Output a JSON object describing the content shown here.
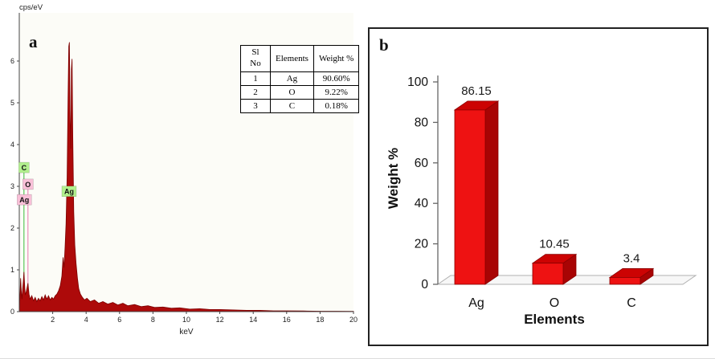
{
  "figure": {
    "panel_a_label": "a",
    "panel_b_label": "b"
  },
  "table": {
    "headers": [
      "Sl\nNo",
      "Elements",
      "Weight %"
    ],
    "rows": [
      [
        "1",
        "Ag",
        "90.60%"
      ],
      [
        "2",
        "O",
        "9.22%"
      ],
      [
        "3",
        "C",
        "0.18%"
      ]
    ]
  },
  "chart_data": [
    {
      "type": "area",
      "title": "EDS spectrum",
      "xlabel": "keV",
      "ylabel": "cps/eV",
      "xlim": [
        0,
        20
      ],
      "ylim": [
        0,
        7
      ],
      "x_ticks": [
        2,
        4,
        6,
        8,
        10,
        12,
        14,
        16,
        18,
        20
      ],
      "y_ticks": [
        0,
        1,
        2,
        3,
        4,
        5,
        6
      ],
      "color": "#ad0a0a",
      "stroke": "#7d0000",
      "bg": "#fcfcf7",
      "markers": [
        {
          "label": "C",
          "x": 0.28,
          "label_y": 3.45,
          "bg": "#b2f08e",
          "line": "#3dbb3d"
        },
        {
          "label": "O",
          "x": 0.52,
          "label_y": 3.05,
          "bg": "#f9c0d8",
          "line": "#e87ab0"
        },
        {
          "label": "Ag",
          "x": 0.3,
          "label_y": 2.68,
          "bg": "#f9c0d8",
          "line": null
        },
        {
          "label": "Ag",
          "x": 2.98,
          "label_y": 2.88,
          "bg": "#b2f08e",
          "line": "#3dbb3d"
        }
      ],
      "points": [
        [
          0.0,
          0.02
        ],
        [
          0.04,
          0.35
        ],
        [
          0.08,
          0.8
        ],
        [
          0.12,
          0.5
        ],
        [
          0.16,
          0.3
        ],
        [
          0.2,
          0.55
        ],
        [
          0.24,
          0.72
        ],
        [
          0.28,
          0.95
        ],
        [
          0.32,
          0.62
        ],
        [
          0.36,
          0.4
        ],
        [
          0.42,
          0.48
        ],
        [
          0.48,
          0.6
        ],
        [
          0.52,
          0.68
        ],
        [
          0.58,
          0.42
        ],
        [
          0.65,
          0.3
        ],
        [
          0.75,
          0.38
        ],
        [
          0.85,
          0.26
        ],
        [
          0.95,
          0.34
        ],
        [
          1.05,
          0.24
        ],
        [
          1.15,
          0.32
        ],
        [
          1.25,
          0.26
        ],
        [
          1.35,
          0.36
        ],
        [
          1.45,
          0.28
        ],
        [
          1.55,
          0.4
        ],
        [
          1.65,
          0.3
        ],
        [
          1.75,
          0.38
        ],
        [
          1.85,
          0.28
        ],
        [
          1.95,
          0.34
        ],
        [
          2.05,
          0.3
        ],
        [
          2.15,
          0.38
        ],
        [
          2.25,
          0.42
        ],
        [
          2.35,
          0.5
        ],
        [
          2.45,
          0.62
        ],
        [
          2.55,
          0.85
        ],
        [
          2.62,
          1.3
        ],
        [
          2.68,
          1.05
        ],
        [
          2.74,
          1.55
        ],
        [
          2.8,
          2.1
        ],
        [
          2.86,
          3.2
        ],
        [
          2.92,
          5.1
        ],
        [
          2.96,
          6.35
        ],
        [
          3.0,
          6.45
        ],
        [
          3.04,
          4.8
        ],
        [
          3.08,
          3.9
        ],
        [
          3.12,
          5.8
        ],
        [
          3.16,
          6.05
        ],
        [
          3.2,
          4.2
        ],
        [
          3.26,
          2.4
        ],
        [
          3.32,
          1.6
        ],
        [
          3.4,
          1.15
        ],
        [
          3.48,
          0.8
        ],
        [
          3.56,
          0.55
        ],
        [
          3.66,
          0.42
        ],
        [
          3.78,
          0.34
        ],
        [
          3.9,
          0.28
        ],
        [
          4.05,
          0.32
        ],
        [
          4.25,
          0.24
        ],
        [
          4.5,
          0.28
        ],
        [
          4.75,
          0.2
        ],
        [
          5.0,
          0.24
        ],
        [
          5.3,
          0.18
        ],
        [
          5.6,
          0.22
        ],
        [
          5.9,
          0.16
        ],
        [
          6.2,
          0.2
        ],
        [
          6.5,
          0.14
        ],
        [
          6.9,
          0.17
        ],
        [
          7.3,
          0.12
        ],
        [
          7.7,
          0.14
        ],
        [
          8.1,
          0.1
        ],
        [
          8.6,
          0.11
        ],
        [
          9.1,
          0.08
        ],
        [
          9.6,
          0.09
        ],
        [
          10.2,
          0.06
        ],
        [
          10.8,
          0.07
        ],
        [
          11.4,
          0.05
        ],
        [
          12.0,
          0.05
        ],
        [
          12.8,
          0.04
        ],
        [
          13.6,
          0.03
        ],
        [
          14.4,
          0.03
        ],
        [
          15.2,
          0.02
        ],
        [
          16.0,
          0.02
        ],
        [
          17.0,
          0.015
        ],
        [
          18.0,
          0.01
        ],
        [
          19.0,
          0.01
        ],
        [
          20.0,
          0.005
        ]
      ]
    },
    {
      "type": "bar",
      "categories": [
        "Ag",
        "O",
        "C"
      ],
      "values": [
        86.15,
        10.45,
        3.4
      ],
      "value_labels": [
        "86.15",
        "10.45",
        "3.4"
      ],
      "xlabel": "Elements",
      "ylabel": "Weight %",
      "ylim": [
        0,
        100
      ],
      "y_ticks": [
        0,
        20,
        40,
        60,
        80,
        100
      ],
      "colors": {
        "front": "#ee1212",
        "top": "#cc0303",
        "side": "#a80404",
        "edge": "#8a0000",
        "floor_fill": "#f7f7f7",
        "floor_edge": "#b0b0b0",
        "axis": "#666666"
      }
    }
  ]
}
